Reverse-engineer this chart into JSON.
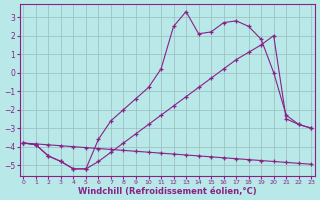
{
  "title": "",
  "xlabel": "Windchill (Refroidissement éolien,°C)",
  "ylabel": "",
  "bg_color": "#b8e8e8",
  "grid_color": "#99bbbb",
  "line_color": "#882288",
  "xlim_min": -0.3,
  "xlim_max": 23.3,
  "ylim_min": -5.6,
  "ylim_max": 3.7,
  "yticks": [
    -5,
    -4,
    -3,
    -2,
    -1,
    0,
    1,
    2,
    3
  ],
  "xticks": [
    0,
    1,
    2,
    3,
    4,
    5,
    6,
    7,
    8,
    9,
    10,
    11,
    12,
    13,
    14,
    15,
    16,
    17,
    18,
    19,
    20,
    21,
    22,
    23
  ],
  "line1_x": [
    0,
    1,
    2,
    3,
    4,
    5,
    6,
    7,
    8,
    9,
    10,
    11,
    12,
    13,
    14,
    15,
    16,
    17,
    18,
    19,
    20,
    21,
    22,
    23
  ],
  "line1_y": [
    -3.8,
    -3.85,
    -3.9,
    -3.95,
    -4.0,
    -4.05,
    -4.1,
    -4.15,
    -4.2,
    -4.25,
    -4.3,
    -4.35,
    -4.4,
    -4.45,
    -4.5,
    -4.55,
    -4.6,
    -4.65,
    -4.7,
    -4.75,
    -4.8,
    -4.85,
    -4.9,
    -4.95
  ],
  "line2_x": [
    0,
    1,
    2,
    3,
    4,
    5,
    6,
    7,
    8,
    9,
    10,
    11,
    12,
    13,
    14,
    15,
    16,
    17,
    18,
    19,
    20,
    21,
    22,
    23
  ],
  "line2_y": [
    -3.8,
    -3.9,
    -4.5,
    -4.8,
    -5.2,
    -5.2,
    -4.8,
    -4.3,
    -3.8,
    -3.3,
    -2.8,
    -2.3,
    -1.8,
    -1.3,
    -0.8,
    -0.3,
    0.2,
    0.7,
    1.1,
    1.5,
    2.0,
    -2.5,
    -2.8,
    -3.0
  ],
  "line3_x": [
    0,
    1,
    2,
    3,
    4,
    5,
    6,
    7,
    8,
    9,
    10,
    11,
    12,
    13,
    14,
    15,
    16,
    17,
    18,
    19,
    20,
    21,
    22,
    23
  ],
  "line3_y": [
    -3.8,
    -3.9,
    -4.5,
    -4.8,
    -5.2,
    -5.2,
    -3.6,
    -2.6,
    -2.0,
    -1.4,
    -0.8,
    0.2,
    2.5,
    3.3,
    2.1,
    2.2,
    2.7,
    2.8,
    2.5,
    1.8,
    0.0,
    -2.3,
    -2.8,
    -3.0
  ]
}
